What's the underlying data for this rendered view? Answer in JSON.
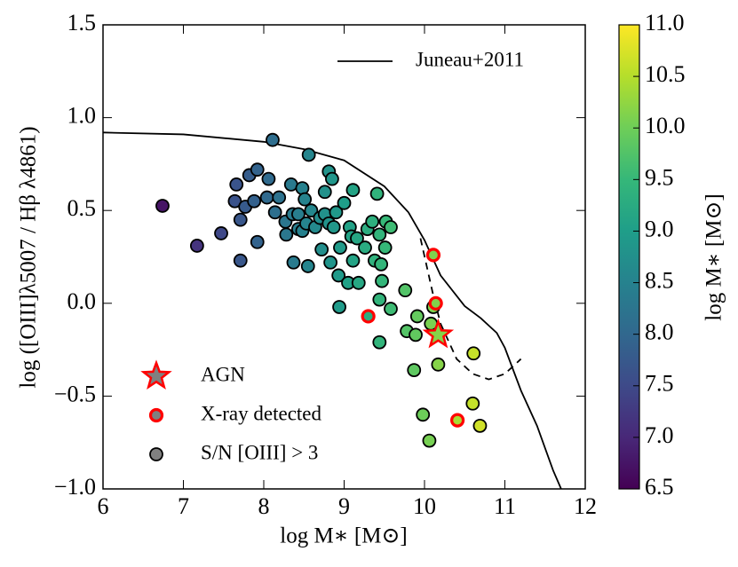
{
  "chart_data": {
    "type": "scatter",
    "xlabel": "log M∗ [M⊙]",
    "ylabel": "log ([OIII]λ5007 / Hβ λ4861)",
    "xlim": [
      6,
      12
    ],
    "ylim": [
      -1.0,
      1.5
    ],
    "xticks": [
      6,
      7,
      8,
      9,
      10,
      11,
      12
    ],
    "yticks": [
      {
        "value": -1.0,
        "label": "−1.0"
      },
      {
        "value": -0.5,
        "label": "−0.5"
      },
      {
        "value": 0.0,
        "label": "0.0"
      },
      {
        "value": 0.5,
        "label": "0.5"
      },
      {
        "value": 1.0,
        "label": "1.0"
      },
      {
        "value": 1.5,
        "label": "1.5"
      }
    ],
    "colormap": "viridis",
    "colorbar": {
      "label": "log M∗ [M⊙]",
      "lim": [
        6.5,
        11.0
      ],
      "ticks": [
        6.5,
        {
          "value": 7.0,
          "label": "7.0"
        },
        7.5,
        {
          "value": 8.0,
          "label": "8.0"
        },
        8.5,
        {
          "value": 9.0,
          "label": "9.0"
        },
        9.5,
        {
          "value": 10.0,
          "label": "10.0"
        },
        10.5,
        {
          "value": 11.0,
          "label": "11.0"
        }
      ]
    },
    "line_legend_loc": "upper right",
    "scatter_legend_loc": "lower left",
    "lines": [
      {
        "name": "Juneau+2011",
        "color": "#000000",
        "x": [
          6,
          7,
          8,
          8.5,
          9,
          9.5,
          9.8,
          10,
          10.2,
          10.5,
          10.7,
          10.9,
          11.0,
          11.2,
          11.4,
          11.6,
          11.7
        ],
        "values": [
          0.92,
          0.91,
          0.87,
          0.83,
          0.77,
          0.63,
          0.49,
          0.34,
          0.15,
          -0.015,
          -0.08,
          -0.16,
          -0.24,
          -0.47,
          -0.66,
          -0.9,
          -1.0
        ]
      },
      {
        "color": "#000000",
        "dashed": true,
        "x": [
          9.95,
          10.1,
          10.2,
          10.4,
          10.6,
          10.8,
          11.0,
          11.2
        ],
        "values": [
          0.35,
          0.06,
          -0.11,
          -0.3,
          -0.38,
          -0.41,
          -0.38,
          -0.3
        ]
      }
    ],
    "series": [
      {
        "name": "AGN",
        "marker": "star",
        "color": "#808080",
        "edgecolor": "#ff0000",
        "x": [
          10.17
        ],
        "values": [
          -0.17
        ]
      },
      {
        "name": "X-ray detected",
        "marker": "circle",
        "color": "#808080",
        "edgecolor": "#ff0000",
        "x": [
          10.11,
          9.3,
          10.14,
          10.41
        ],
        "values": [
          0.26,
          -0.07,
          0.0,
          -0.63
        ]
      },
      {
        "name": "S/N [OIII] > 3",
        "marker": "circle",
        "color": "#808080",
        "edgecolor": "#000000",
        "x": [
          6.74,
          7.17,
          7.47,
          7.64,
          7.66,
          7.71,
          7.71,
          7.77,
          7.82,
          7.92,
          7.88,
          7.92,
          8.04,
          8.06,
          8.11,
          8.14,
          8.19,
          8.27,
          8.28,
          8.34,
          8.36,
          8.37,
          8.43,
          8.43,
          8.48,
          8.48,
          8.51,
          8.53,
          8.56,
          8.55,
          8.59,
          8.64,
          8.7,
          8.72,
          8.76,
          8.76,
          8.81,
          8.81,
          8.83,
          8.85,
          8.87,
          8.9,
          8.93,
          8.95,
          8.94,
          9.0,
          9.05,
          9.07,
          9.09,
          9.11,
          9.16,
          9.18,
          9.11,
          9.26,
          9.29,
          9.35,
          9.38,
          9.41,
          9.44,
          9.47,
          9.44,
          9.46,
          9.52,
          9.58,
          9.51,
          9.58,
          9.76,
          9.78,
          9.89,
          9.91,
          9.87,
          9.98,
          10.06,
          10.08,
          10.11,
          10.17,
          10.6,
          10.69,
          10.61,
          9.44
        ],
        "values": [
          0.525,
          0.31,
          0.377,
          0.55,
          0.64,
          0.45,
          0.23,
          0.52,
          0.69,
          0.72,
          0.55,
          0.33,
          0.57,
          0.67,
          0.88,
          0.49,
          0.57,
          0.44,
          0.37,
          0.64,
          0.48,
          0.22,
          0.4,
          0.48,
          0.62,
          0.39,
          0.56,
          0.43,
          0.8,
          0.2,
          0.5,
          0.41,
          0.46,
          0.29,
          0.48,
          0.6,
          0.71,
          0.43,
          0.22,
          0.67,
          0.41,
          0.49,
          0.15,
          0.3,
          -0.02,
          0.54,
          0.11,
          0.41,
          0.36,
          0.23,
          0.35,
          0.11,
          0.61,
          0.3,
          0.4,
          0.44,
          0.23,
          0.59,
          0.37,
          0.12,
          0.02,
          0.21,
          0.44,
          0.41,
          0.3,
          -0.03,
          0.07,
          -0.15,
          -0.17,
          -0.07,
          -0.36,
          -0.6,
          -0.74,
          -0.11,
          -0.02,
          -0.33,
          -0.54,
          -0.66,
          -0.27,
          -0.21
        ]
      }
    ]
  }
}
